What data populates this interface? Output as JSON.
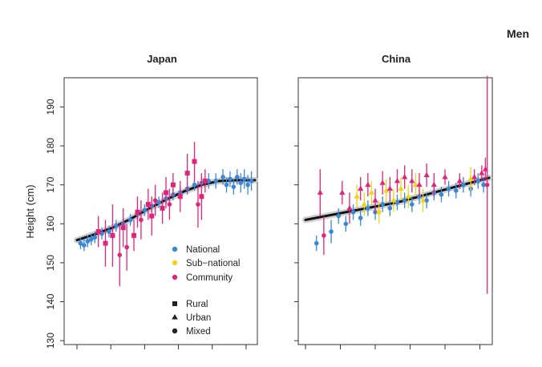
{
  "figure": {
    "title": "Men"
  },
  "legend": {
    "sources": [
      {
        "label": "National",
        "color": "#3a87d6"
      },
      {
        "label": "Sub−national",
        "color": "#f2d21a"
      },
      {
        "label": "Community",
        "color": "#e0247a"
      }
    ],
    "settings": [
      {
        "label": "Rural",
        "shape": "square"
      },
      {
        "label": "Urban",
        "shape": "triangle"
      },
      {
        "label": "Mixed",
        "shape": "circle"
      }
    ]
  },
  "chart_data": [
    {
      "type": "scatter",
      "title": "Japan",
      "xlabel": "",
      "ylabel": "Height (cm)",
      "ylim": [
        129,
        197.5
      ],
      "yticks": [
        130,
        140,
        150,
        160,
        170,
        180,
        190
      ],
      "xlim": [
        0,
        100
      ],
      "x_unlabeled_ticks": 6,
      "trend": {
        "x": [
          0,
          10,
          20,
          30,
          40,
          50,
          60,
          70,
          80,
          90,
          100
        ],
        "y": [
          155.8,
          157.3,
          159.0,
          161.2,
          163.8,
          166.2,
          168.3,
          170.0,
          171.0,
          171.2,
          171.2
        ]
      },
      "series": [
        {
          "name": "National",
          "color": "#3a87d6",
          "points": [
            {
              "x": 2,
              "y": 155,
              "e": 1.5,
              "shape": "circle"
            },
            {
              "x": 4,
              "y": 154.5,
              "e": 1.5,
              "shape": "circle"
            },
            {
              "x": 6,
              "y": 155.5,
              "e": 1.5,
              "shape": "circle"
            },
            {
              "x": 8,
              "y": 156,
              "e": 1.5,
              "shape": "circle"
            },
            {
              "x": 10,
              "y": 156.5,
              "e": 1.5,
              "shape": "circle"
            },
            {
              "x": 14,
              "y": 157.5,
              "e": 1.5,
              "shape": "circle"
            },
            {
              "x": 18,
              "y": 158,
              "e": 1.5,
              "shape": "circle"
            },
            {
              "x": 22,
              "y": 159.5,
              "e": 1.5,
              "shape": "circle"
            },
            {
              "x": 26,
              "y": 160,
              "e": 1.5,
              "shape": "circle"
            },
            {
              "x": 30,
              "y": 161,
              "e": 1.5,
              "shape": "circle"
            },
            {
              "x": 34,
              "y": 162.5,
              "e": 1.5,
              "shape": "circle"
            },
            {
              "x": 38,
              "y": 163.5,
              "e": 1.5,
              "shape": "circle"
            },
            {
              "x": 42,
              "y": 164.5,
              "e": 1.5,
              "shape": "circle"
            },
            {
              "x": 46,
              "y": 165.5,
              "e": 1.5,
              "shape": "circle"
            },
            {
              "x": 50,
              "y": 166.5,
              "e": 1.5,
              "shape": "circle"
            },
            {
              "x": 54,
              "y": 167.5,
              "e": 1.5,
              "shape": "circle"
            },
            {
              "x": 58,
              "y": 168,
              "e": 1.5,
              "shape": "circle"
            },
            {
              "x": 62,
              "y": 169,
              "e": 1.5,
              "shape": "circle"
            },
            {
              "x": 66,
              "y": 170,
              "e": 1.5,
              "shape": "circle"
            },
            {
              "x": 70,
              "y": 170.5,
              "e": 1.5,
              "shape": "circle"
            },
            {
              "x": 74,
              "y": 171,
              "e": 2,
              "shape": "circle"
            },
            {
              "x": 78,
              "y": 171,
              "e": 2,
              "shape": "circle"
            },
            {
              "x": 82,
              "y": 172,
              "e": 2,
              "shape": "circle"
            },
            {
              "x": 84,
              "y": 170,
              "e": 2,
              "shape": "circle"
            },
            {
              "x": 86,
              "y": 171.5,
              "e": 2,
              "shape": "circle"
            },
            {
              "x": 88,
              "y": 169.5,
              "e": 2,
              "shape": "circle"
            },
            {
              "x": 90,
              "y": 172,
              "e": 2,
              "shape": "circle"
            },
            {
              "x": 92,
              "y": 170.5,
              "e": 2.5,
              "shape": "circle"
            },
            {
              "x": 94,
              "y": 171.5,
              "e": 2.5,
              "shape": "circle"
            },
            {
              "x": 96,
              "y": 170,
              "e": 2.5,
              "shape": "circle"
            },
            {
              "x": 98,
              "y": 171,
              "e": 2.5,
              "shape": "circle"
            }
          ]
        },
        {
          "name": "Community",
          "color": "#e0247a",
          "points": [
            {
              "x": 12,
              "y": 158,
              "e": 4,
              "shape": "square"
            },
            {
              "x": 16,
              "y": 155,
              "e": 6,
              "shape": "square"
            },
            {
              "x": 20,
              "y": 157,
              "e": 8,
              "shape": "square"
            },
            {
              "x": 24,
              "y": 152,
              "e": 8,
              "shape": "circle"
            },
            {
              "x": 26,
              "y": 159,
              "e": 5,
              "shape": "square"
            },
            {
              "x": 28,
              "y": 154,
              "e": 6,
              "shape": "circle"
            },
            {
              "x": 32,
              "y": 157,
              "e": 4,
              "shape": "square"
            },
            {
              "x": 34,
              "y": 163,
              "e": 4,
              "shape": "square"
            },
            {
              "x": 36,
              "y": 161,
              "e": 5,
              "shape": "circle"
            },
            {
              "x": 40,
              "y": 165,
              "e": 4,
              "shape": "square"
            },
            {
              "x": 42,
              "y": 162,
              "e": 5,
              "shape": "square"
            },
            {
              "x": 44,
              "y": 166,
              "e": 4,
              "shape": "circle"
            },
            {
              "x": 48,
              "y": 164,
              "e": 4,
              "shape": "square"
            },
            {
              "x": 50,
              "y": 168,
              "e": 4,
              "shape": "square"
            },
            {
              "x": 52,
              "y": 165,
              "e": 4,
              "shape": "circle"
            },
            {
              "x": 54,
              "y": 170,
              "e": 3,
              "shape": "square"
            },
            {
              "x": 58,
              "y": 167,
              "e": 4,
              "shape": "square"
            },
            {
              "x": 62,
              "y": 173,
              "e": 5,
              "shape": "square"
            },
            {
              "x": 66,
              "y": 176,
              "e": 5,
              "shape": "square"
            },
            {
              "x": 68,
              "y": 165,
              "e": 6,
              "shape": "circle"
            },
            {
              "x": 70,
              "y": 167,
              "e": 6,
              "shape": "square"
            },
            {
              "x": 72,
              "y": 171,
              "e": 3,
              "shape": "square"
            }
          ]
        }
      ]
    },
    {
      "type": "scatter",
      "title": "China",
      "xlabel": "",
      "ylabel": "",
      "ylim": [
        129,
        197.5
      ],
      "yticks": [
        130,
        140,
        150,
        160,
        170,
        180,
        190
      ],
      "xlim": [
        0,
        100
      ],
      "x_unlabeled_ticks": 6,
      "trend": {
        "x": [
          0,
          50,
          100
        ],
        "y": [
          161.0,
          165.5,
          171.8
        ]
      },
      "series": [
        {
          "name": "National",
          "color": "#3a87d6",
          "points": [
            {
              "x": 6,
              "y": 155,
              "e": 2,
              "shape": "circle"
            },
            {
              "x": 14,
              "y": 158,
              "e": 3,
              "shape": "circle"
            },
            {
              "x": 18,
              "y": 162,
              "e": 2,
              "shape": "circle"
            },
            {
              "x": 22,
              "y": 160,
              "e": 2,
              "shape": "circle"
            },
            {
              "x": 26,
              "y": 163,
              "e": 2,
              "shape": "circle"
            },
            {
              "x": 30,
              "y": 161.5,
              "e": 2,
              "shape": "circle"
            },
            {
              "x": 34,
              "y": 164,
              "e": 2,
              "shape": "circle"
            },
            {
              "x": 38,
              "y": 163,
              "e": 2,
              "shape": "circle"
            },
            {
              "x": 42,
              "y": 165,
              "e": 2,
              "shape": "circle"
            },
            {
              "x": 46,
              "y": 164,
              "e": 2,
              "shape": "circle"
            },
            {
              "x": 50,
              "y": 165.5,
              "e": 2,
              "shape": "circle"
            },
            {
              "x": 54,
              "y": 166,
              "e": 2,
              "shape": "circle"
            },
            {
              "x": 58,
              "y": 165,
              "e": 2,
              "shape": "circle"
            },
            {
              "x": 62,
              "y": 167,
              "e": 2,
              "shape": "circle"
            },
            {
              "x": 66,
              "y": 166,
              "e": 2,
              "shape": "circle"
            },
            {
              "x": 70,
              "y": 168,
              "e": 2,
              "shape": "circle"
            },
            {
              "x": 74,
              "y": 167.5,
              "e": 2,
              "shape": "circle"
            },
            {
              "x": 78,
              "y": 169,
              "e": 2,
              "shape": "circle"
            },
            {
              "x": 82,
              "y": 168.5,
              "e": 2,
              "shape": "circle"
            },
            {
              "x": 86,
              "y": 170,
              "e": 2,
              "shape": "circle"
            },
            {
              "x": 90,
              "y": 169,
              "e": 2,
              "shape": "circle"
            },
            {
              "x": 94,
              "y": 171,
              "e": 2,
              "shape": "circle"
            },
            {
              "x": 97,
              "y": 170,
              "e": 2,
              "shape": "circle"
            }
          ]
        },
        {
          "name": "Sub−national",
          "color": "#f2d21a",
          "points": [
            {
              "x": 28,
              "y": 167,
              "e": 3,
              "shape": "triangle"
            },
            {
              "x": 32,
              "y": 165,
              "e": 3,
              "shape": "triangle"
            },
            {
              "x": 36,
              "y": 168,
              "e": 3,
              "shape": "triangle"
            },
            {
              "x": 40,
              "y": 163,
              "e": 3,
              "shape": "circle"
            },
            {
              "x": 44,
              "y": 168.5,
              "e": 3,
              "shape": "triangle"
            },
            {
              "x": 48,
              "y": 166,
              "e": 3,
              "shape": "triangle"
            },
            {
              "x": 52,
              "y": 169,
              "e": 3,
              "shape": "triangle"
            },
            {
              "x": 56,
              "y": 167,
              "e": 3,
              "shape": "triangle"
            },
            {
              "x": 60,
              "y": 170,
              "e": 3,
              "shape": "triangle"
            },
            {
              "x": 64,
              "y": 166,
              "e": 3,
              "shape": "triangle"
            },
            {
              "x": 90,
              "y": 171.5,
              "e": 3,
              "shape": "triangle"
            }
          ]
        },
        {
          "name": "Community",
          "color": "#e0247a",
          "points": [
            {
              "x": 8,
              "y": 168,
              "e": 6,
              "shape": "triangle"
            },
            {
              "x": 10,
              "y": 157,
              "e": 5,
              "shape": "circle"
            },
            {
              "x": 20,
              "y": 168,
              "e": 3,
              "shape": "triangle"
            },
            {
              "x": 24,
              "y": 164,
              "e": 4,
              "shape": "triangle"
            },
            {
              "x": 30,
              "y": 169,
              "e": 3,
              "shape": "triangle"
            },
            {
              "x": 34,
              "y": 170,
              "e": 3,
              "shape": "triangle"
            },
            {
              "x": 38,
              "y": 166,
              "e": 3,
              "shape": "triangle"
            },
            {
              "x": 42,
              "y": 170.5,
              "e": 3,
              "shape": "triangle"
            },
            {
              "x": 46,
              "y": 169,
              "e": 3,
              "shape": "triangle"
            },
            {
              "x": 50,
              "y": 171,
              "e": 3,
              "shape": "triangle"
            },
            {
              "x": 54,
              "y": 172,
              "e": 3,
              "shape": "triangle"
            },
            {
              "x": 58,
              "y": 171,
              "e": 3,
              "shape": "triangle"
            },
            {
              "x": 62,
              "y": 170,
              "e": 3,
              "shape": "triangle"
            },
            {
              "x": 66,
              "y": 172.5,
              "e": 3,
              "shape": "triangle"
            },
            {
              "x": 70,
              "y": 170,
              "e": 3,
              "shape": "triangle"
            },
            {
              "x": 76,
              "y": 172,
              "e": 2,
              "shape": "triangle"
            },
            {
              "x": 84,
              "y": 171,
              "e": 2,
              "shape": "triangle"
            },
            {
              "x": 92,
              "y": 172,
              "e": 2,
              "shape": "triangle"
            },
            {
              "x": 96,
              "y": 173,
              "e": 2,
              "shape": "triangle"
            },
            {
              "x": 98,
              "y": 174,
              "e": 3,
              "shape": "triangle"
            },
            {
              "x": 99,
              "y": 170,
              "e": 28,
              "shape": "circle"
            }
          ]
        }
      ]
    }
  ]
}
